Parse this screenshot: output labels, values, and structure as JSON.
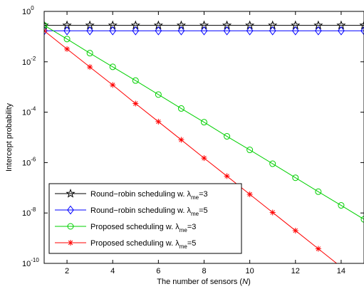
{
  "chart_data": {
    "type": "line",
    "title": "",
    "xlabel": "The number of sensors (N)",
    "xlabel_parts": [
      "The number of sensors (",
      "N",
      ")"
    ],
    "ylabel": "Intercept probability",
    "xlim": [
      1,
      15
    ],
    "ylim": [
      1e-10,
      1
    ],
    "yscale": "log",
    "grid": false,
    "legend_position": "bottom-left",
    "x_ticks": [
      2,
      4,
      6,
      8,
      10,
      12,
      14
    ],
    "y_ticks": [
      {
        "value": 1,
        "base": "10",
        "exp": "0"
      },
      {
        "value": 0.01,
        "base": "10",
        "exp": "-2"
      },
      {
        "value": 0.0001,
        "base": "10",
        "exp": "-4"
      },
      {
        "value": 1e-06,
        "base": "10",
        "exp": "-6"
      },
      {
        "value": 1e-08,
        "base": "10",
        "exp": "-8"
      },
      {
        "value": 1e-10,
        "base": "10",
        "exp": "-10"
      }
    ],
    "x": [
      1,
      2,
      3,
      4,
      5,
      6,
      7,
      8,
      9,
      10,
      11,
      12,
      13,
      14,
      15
    ],
    "series": [
      {
        "name": "Round−robin scheduling w. λme=3",
        "legend_main": "Round−robin scheduling w. λ",
        "legend_sub": "me",
        "legend_tail": "=3",
        "color": "#000000",
        "marker": "star",
        "values": [
          0.28,
          0.28,
          0.28,
          0.28,
          0.28,
          0.28,
          0.28,
          0.28,
          0.28,
          0.28,
          0.28,
          0.28,
          0.28,
          0.28,
          0.28
        ]
      },
      {
        "name": "Round−robin scheduling w. λme=5",
        "legend_main": "Round−robin scheduling w. λ",
        "legend_sub": "me",
        "legend_tail": "=5",
        "color": "#0000ff",
        "marker": "diamond",
        "values": [
          0.17,
          0.17,
          0.17,
          0.17,
          0.17,
          0.17,
          0.17,
          0.17,
          0.17,
          0.17,
          0.17,
          0.17,
          0.17,
          0.17,
          0.17
        ]
      },
      {
        "name": "Proposed scheduling w. λme=3",
        "legend_main": "Proposed scheduling w. λ",
        "legend_sub": "me",
        "legend_tail": "=3",
        "color": "#00d000",
        "marker": "circle",
        "values": [
          0.28,
          0.08,
          0.022,
          0.0063,
          0.0018,
          0.0005,
          0.00014,
          4e-05,
          1.1e-05,
          3.2e-06,
          9e-07,
          2.5e-07,
          7e-08,
          2e-08,
          5.6e-09
        ]
      },
      {
        "name": "Proposed scheduling w. λme=5",
        "legend_main": "Proposed scheduling w. λ",
        "legend_sub": "me",
        "legend_tail": "=5",
        "color": "#ff0000",
        "marker": "asterisk",
        "values": [
          0.17,
          0.032,
          0.0062,
          0.0012,
          0.00022,
          4.2e-05,
          8e-06,
          1.5e-06,
          2.9e-07,
          5.5e-08,
          1.05e-08,
          2e-09,
          3.8e-10,
          7.2e-11,
          1.4e-11
        ]
      }
    ]
  }
}
